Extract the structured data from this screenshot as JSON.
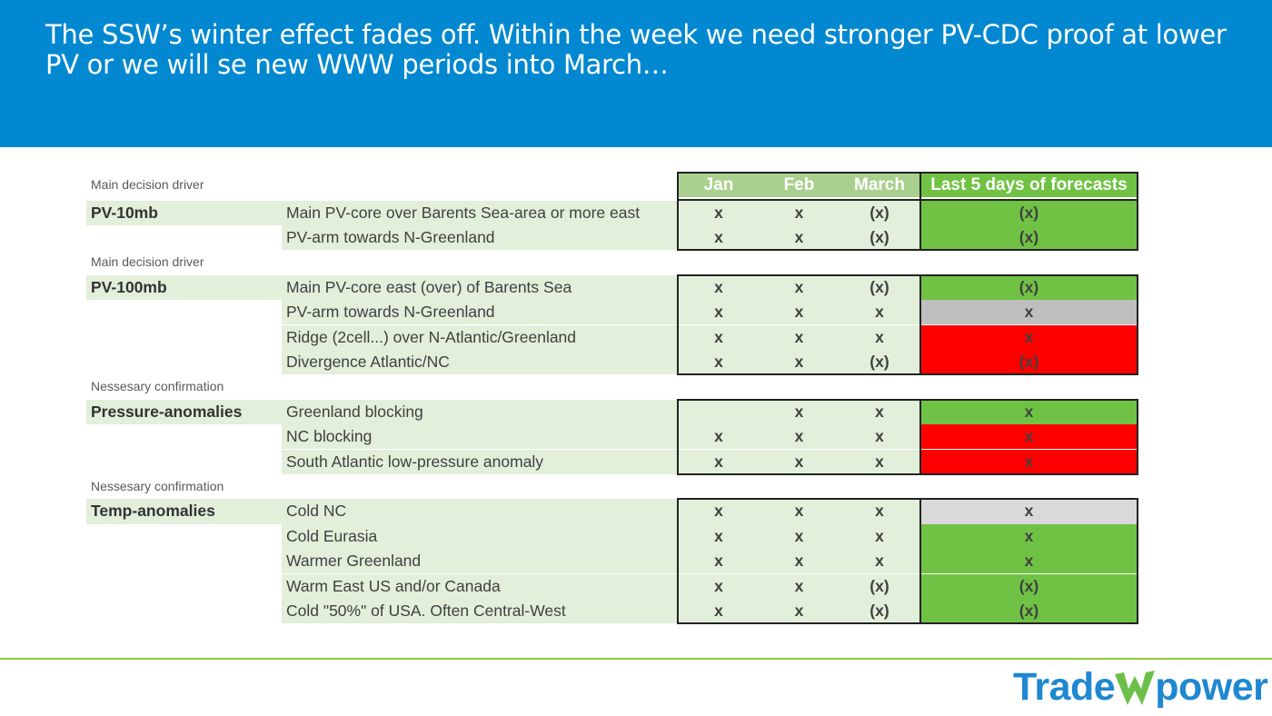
{
  "title": "The SSW’s winter effect fades off. Within the week we need stronger PV-CDC proof at lower PV or we will se new WWW periods into March…",
  "table": {
    "columns": [
      "Jan",
      "Feb",
      "March",
      "Last 5 days of forecasts"
    ],
    "sections": [
      {
        "heading": "Main decision driver",
        "label": "PV-10mb",
        "rows": [
          {
            "desc": "Main PV-core over Barents Sea-area or more east",
            "jan": "x",
            "feb": "x",
            "march": "(x)",
            "last5": "(x)",
            "status_color": "#70C244"
          },
          {
            "desc": "PV-arm towards N-Greenland",
            "jan": "x",
            "feb": "x",
            "march": "(x)",
            "last5": "(x)",
            "status_color": "#70C244"
          }
        ]
      },
      {
        "heading": "Main decision driver",
        "label": "PV-100mb",
        "rows": [
          {
            "desc": "Main PV-core east (over) of Barents Sea",
            "jan": "x",
            "feb": "x",
            "march": "(x)",
            "last5": "(x)",
            "status_color": "#70C244"
          },
          {
            "desc": "PV-arm towards N-Greenland",
            "jan": "x",
            "feb": "x",
            "march": "x",
            "last5": "x",
            "status_color": "#BFBFBF"
          },
          {
            "desc": "Ridge (2cell...) over N-Atlantic/Greenland",
            "jan": "x",
            "feb": "x",
            "march": "x",
            "last5": "x",
            "status_color": "#FF0000"
          },
          {
            "desc": "Divergence Atlantic/NC",
            "jan": "x",
            "feb": "x",
            "march": "(x)",
            "last5": "(x)",
            "status_color": "#FF0000"
          }
        ]
      },
      {
        "heading": "Nessesary confirmation",
        "label": "Pressure-anomalies",
        "rows": [
          {
            "desc": "Greenland blocking",
            "jan": "",
            "feb": "x",
            "march": "x",
            "last5": "x",
            "status_color": "#70C244"
          },
          {
            "desc": "NC blocking",
            "jan": "x",
            "feb": "x",
            "march": "x",
            "last5": "x",
            "status_color": "#FF0000"
          },
          {
            "desc": "South Atlantic low-pressure anomaly",
            "jan": "x",
            "feb": "x",
            "march": "x",
            "last5": "x",
            "status_color": "#FF0000"
          }
        ]
      },
      {
        "heading": "Nessesary confirmation",
        "label": "Temp-anomalies",
        "rows": [
          {
            "desc": "Cold NC",
            "jan": "x",
            "feb": "x",
            "march": "x",
            "last5": "x",
            "status_color": "#D9D9D9"
          },
          {
            "desc": "Cold Eurasia",
            "jan": "x",
            "feb": "x",
            "march": "x",
            "last5": "x",
            "status_color": "#70C244"
          },
          {
            "desc": "Warmer Greenland",
            "jan": "x",
            "feb": "x",
            "march": "x",
            "last5": "x",
            "status_color": "#70C244"
          },
          {
            "desc": "Warm East US and/or Canada",
            "jan": "x",
            "feb": "x",
            "march": "(x)",
            "last5": "(x)",
            "status_color": "#70C244"
          },
          {
            "desc": "Cold \"50%\" of USA. Often Central-West",
            "jan": "x",
            "feb": "x",
            "march": "(x)",
            "last5": "(x)",
            "status_color": "#70C244"
          }
        ]
      }
    ]
  },
  "logo": {
    "left": "Trade",
    "right": "power"
  }
}
